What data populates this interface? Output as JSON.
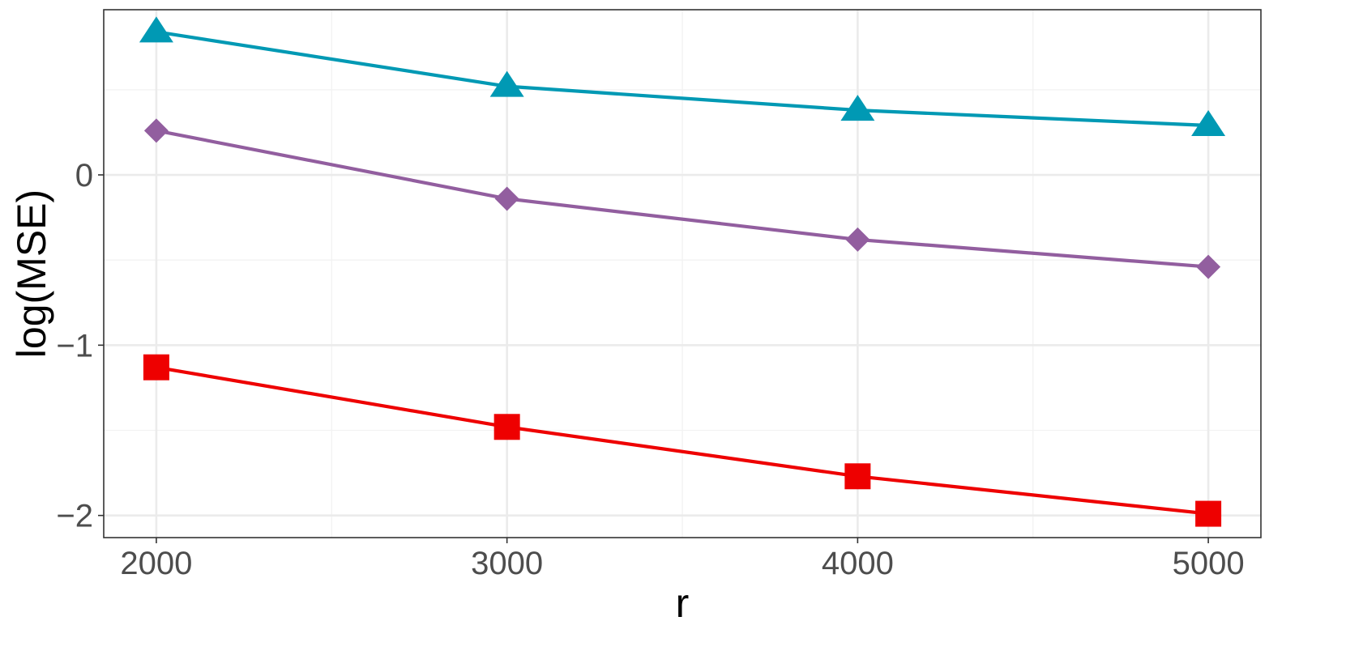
{
  "chart_data": {
    "type": "line",
    "title": "",
    "xlabel": "r",
    "ylabel": "log(MSE)",
    "x": [
      2000,
      3000,
      4000,
      5000
    ],
    "xlim": [
      1850,
      5150
    ],
    "ylim": [
      -2.13,
      0.97
    ],
    "x_ticks": [
      2000,
      3000,
      4000,
      5000
    ],
    "x_tick_labels": [
      "2000",
      "3000",
      "4000",
      "5000"
    ],
    "y_ticks": [
      -2,
      -1,
      0
    ],
    "y_tick_labels": [
      "−2",
      "−1",
      "0"
    ],
    "grid": true,
    "legend": "none",
    "series": [
      {
        "marker": "triangle",
        "color": "#0099b4",
        "values": [
          0.84,
          0.52,
          0.38,
          0.29
        ]
      },
      {
        "marker": "diamond",
        "color": "#925e9f",
        "values": [
          0.26,
          -0.14,
          -0.38,
          -0.54
        ]
      },
      {
        "marker": "square",
        "color": "#ee0000",
        "values": [
          -1.13,
          -1.48,
          -1.77,
          -1.99
        ]
      }
    ]
  }
}
